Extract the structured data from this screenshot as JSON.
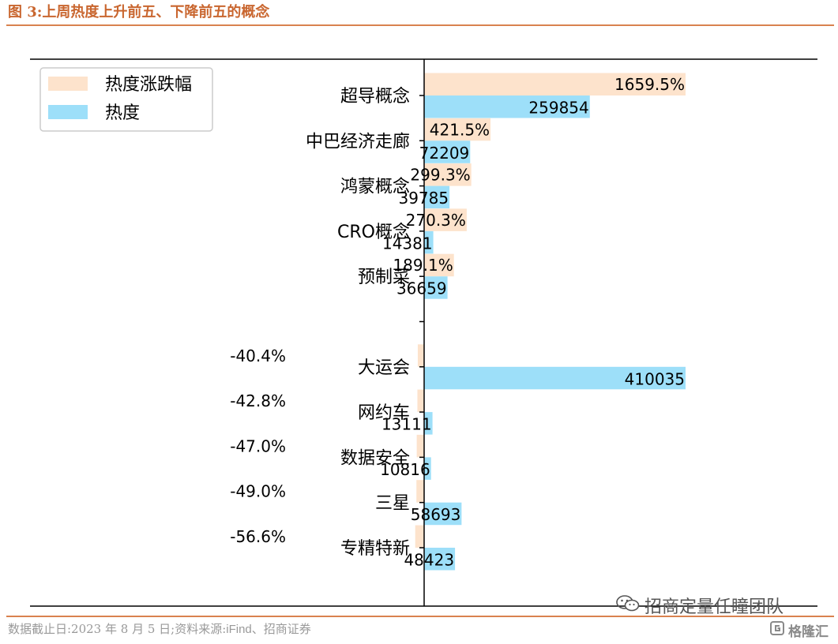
{
  "figure": {
    "title": "图 3:上周热度上升前五、下降前五的概念",
    "source_prefix": "数据截止日:2023 年 8 月 5 日;资料来源:",
    "source_ascii": "iFind",
    "source_suffix": "、招商证券"
  },
  "watermarks": {
    "wechat_account": "招商定量任瞳团队",
    "wechat_icon": "wechat-icon",
    "brand": "格隆汇",
    "brand_icon": "gelonghui-logo-icon"
  },
  "chart_data": {
    "type": "bar",
    "orientation": "horizontal",
    "categories": [
      "超导概念",
      "中巴经济走廊",
      "鸿蒙概念",
      "CRO概念",
      "预制菜",
      "",
      "大运会",
      "网约车",
      "数据安全",
      "三星",
      "专精特新"
    ],
    "series": [
      {
        "name": "热度涨跌幅",
        "color": "#fde3cc",
        "values": [
          1659.5,
          421.5,
          299.3,
          270.3,
          189.1,
          null,
          -40.4,
          -42.8,
          -47.0,
          -49.0,
          -56.6
        ],
        "labels": [
          "1659.5%",
          "421.5%",
          "299.3%",
          "270.3%",
          "189.1%",
          "",
          "-40.4%",
          "-42.8%",
          "-47.0%",
          "-49.0%",
          "-56.6%"
        ]
      },
      {
        "name": "热度",
        "color": "#9ddff9",
        "values": [
          259854,
          72209,
          39785,
          14381,
          36659,
          null,
          410035,
          13111,
          10816,
          58693,
          48423
        ],
        "labels": [
          "259854",
          "72209",
          "39785",
          "14381",
          "36659",
          "",
          "410035",
          "13111",
          "10816",
          "58693",
          "48423"
        ]
      }
    ],
    "legend_position": "upper-left",
    "grid": false,
    "axis_color": "#000000"
  }
}
